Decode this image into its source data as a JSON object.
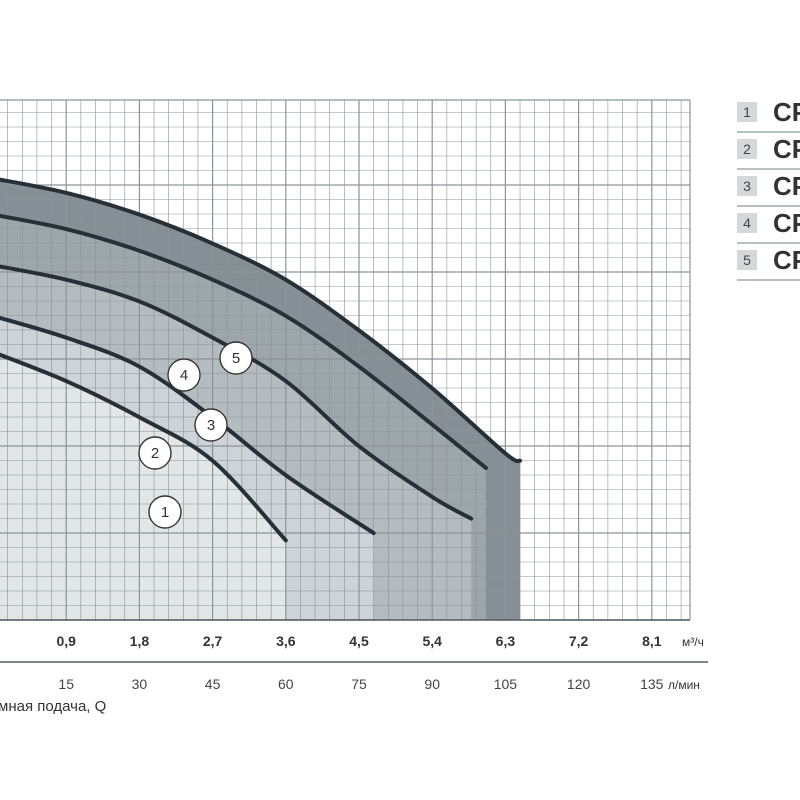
{
  "chart_data": {
    "type": "line",
    "x_axis_primary": {
      "unit": "м³/ч",
      "ticks": [
        "0,9",
        "1,8",
        "2,7",
        "3,6",
        "4,5",
        "5,4",
        "6,3",
        "7,2",
        "8,1"
      ]
    },
    "x_axis_secondary": {
      "unit": "л/мин",
      "ticks": [
        "15",
        "30",
        "45",
        "60",
        "75",
        "90",
        "105",
        "120",
        "135"
      ]
    },
    "xlabel": "мная подача, Q",
    "xlim_lmin": [
      0,
      150
    ],
    "grid": true,
    "series": [
      {
        "name": "1",
        "marker": "1",
        "points": [
          [
            0,
            37
          ],
          [
            15,
            33
          ],
          [
            30,
            28
          ],
          [
            45,
            22
          ],
          [
            60,
            11
          ]
        ]
      },
      {
        "name": "2",
        "marker": "2",
        "points": [
          [
            0,
            42
          ],
          [
            15,
            39
          ],
          [
            30,
            35
          ],
          [
            45,
            28
          ],
          [
            60,
            20
          ],
          [
            78,
            12
          ]
        ]
      },
      {
        "name": "3",
        "marker": "3",
        "points": [
          [
            0,
            49
          ],
          [
            15,
            47
          ],
          [
            30,
            44
          ],
          [
            45,
            39
          ],
          [
            60,
            33
          ],
          [
            75,
            24
          ],
          [
            90,
            17
          ],
          [
            98,
            14
          ]
        ]
      },
      {
        "name": "4",
        "marker": "4",
        "points": [
          [
            0,
            56
          ],
          [
            15,
            54
          ],
          [
            30,
            51
          ],
          [
            45,
            47
          ],
          [
            60,
            42
          ],
          [
            75,
            35
          ],
          [
            90,
            27
          ],
          [
            101,
            21
          ]
        ]
      },
      {
        "name": "5",
        "marker": "5",
        "points": [
          [
            0,
            61
          ],
          [
            15,
            59
          ],
          [
            30,
            56
          ],
          [
            45,
            52
          ],
          [
            60,
            47
          ],
          [
            75,
            40
          ],
          [
            90,
            32
          ],
          [
            105,
            23
          ],
          [
            108,
            22
          ]
        ]
      }
    ],
    "legend": {
      "placement": "top-right",
      "items": [
        {
          "num": "1",
          "name": "CP"
        },
        {
          "num": "2",
          "name": "CP"
        },
        {
          "num": "3",
          "name": "CP"
        },
        {
          "num": "4",
          "name": "CP"
        },
        {
          "num": "5",
          "name": "CP"
        }
      ]
    },
    "colors": {
      "grid": "#8c9397",
      "curve": "#263036",
      "fills": [
        "#e2e6e7",
        "#cdd3d6",
        "#b5bcc0",
        "#9da6ab",
        "#858f95"
      ],
      "legend_box": "#d5d8da"
    }
  }
}
